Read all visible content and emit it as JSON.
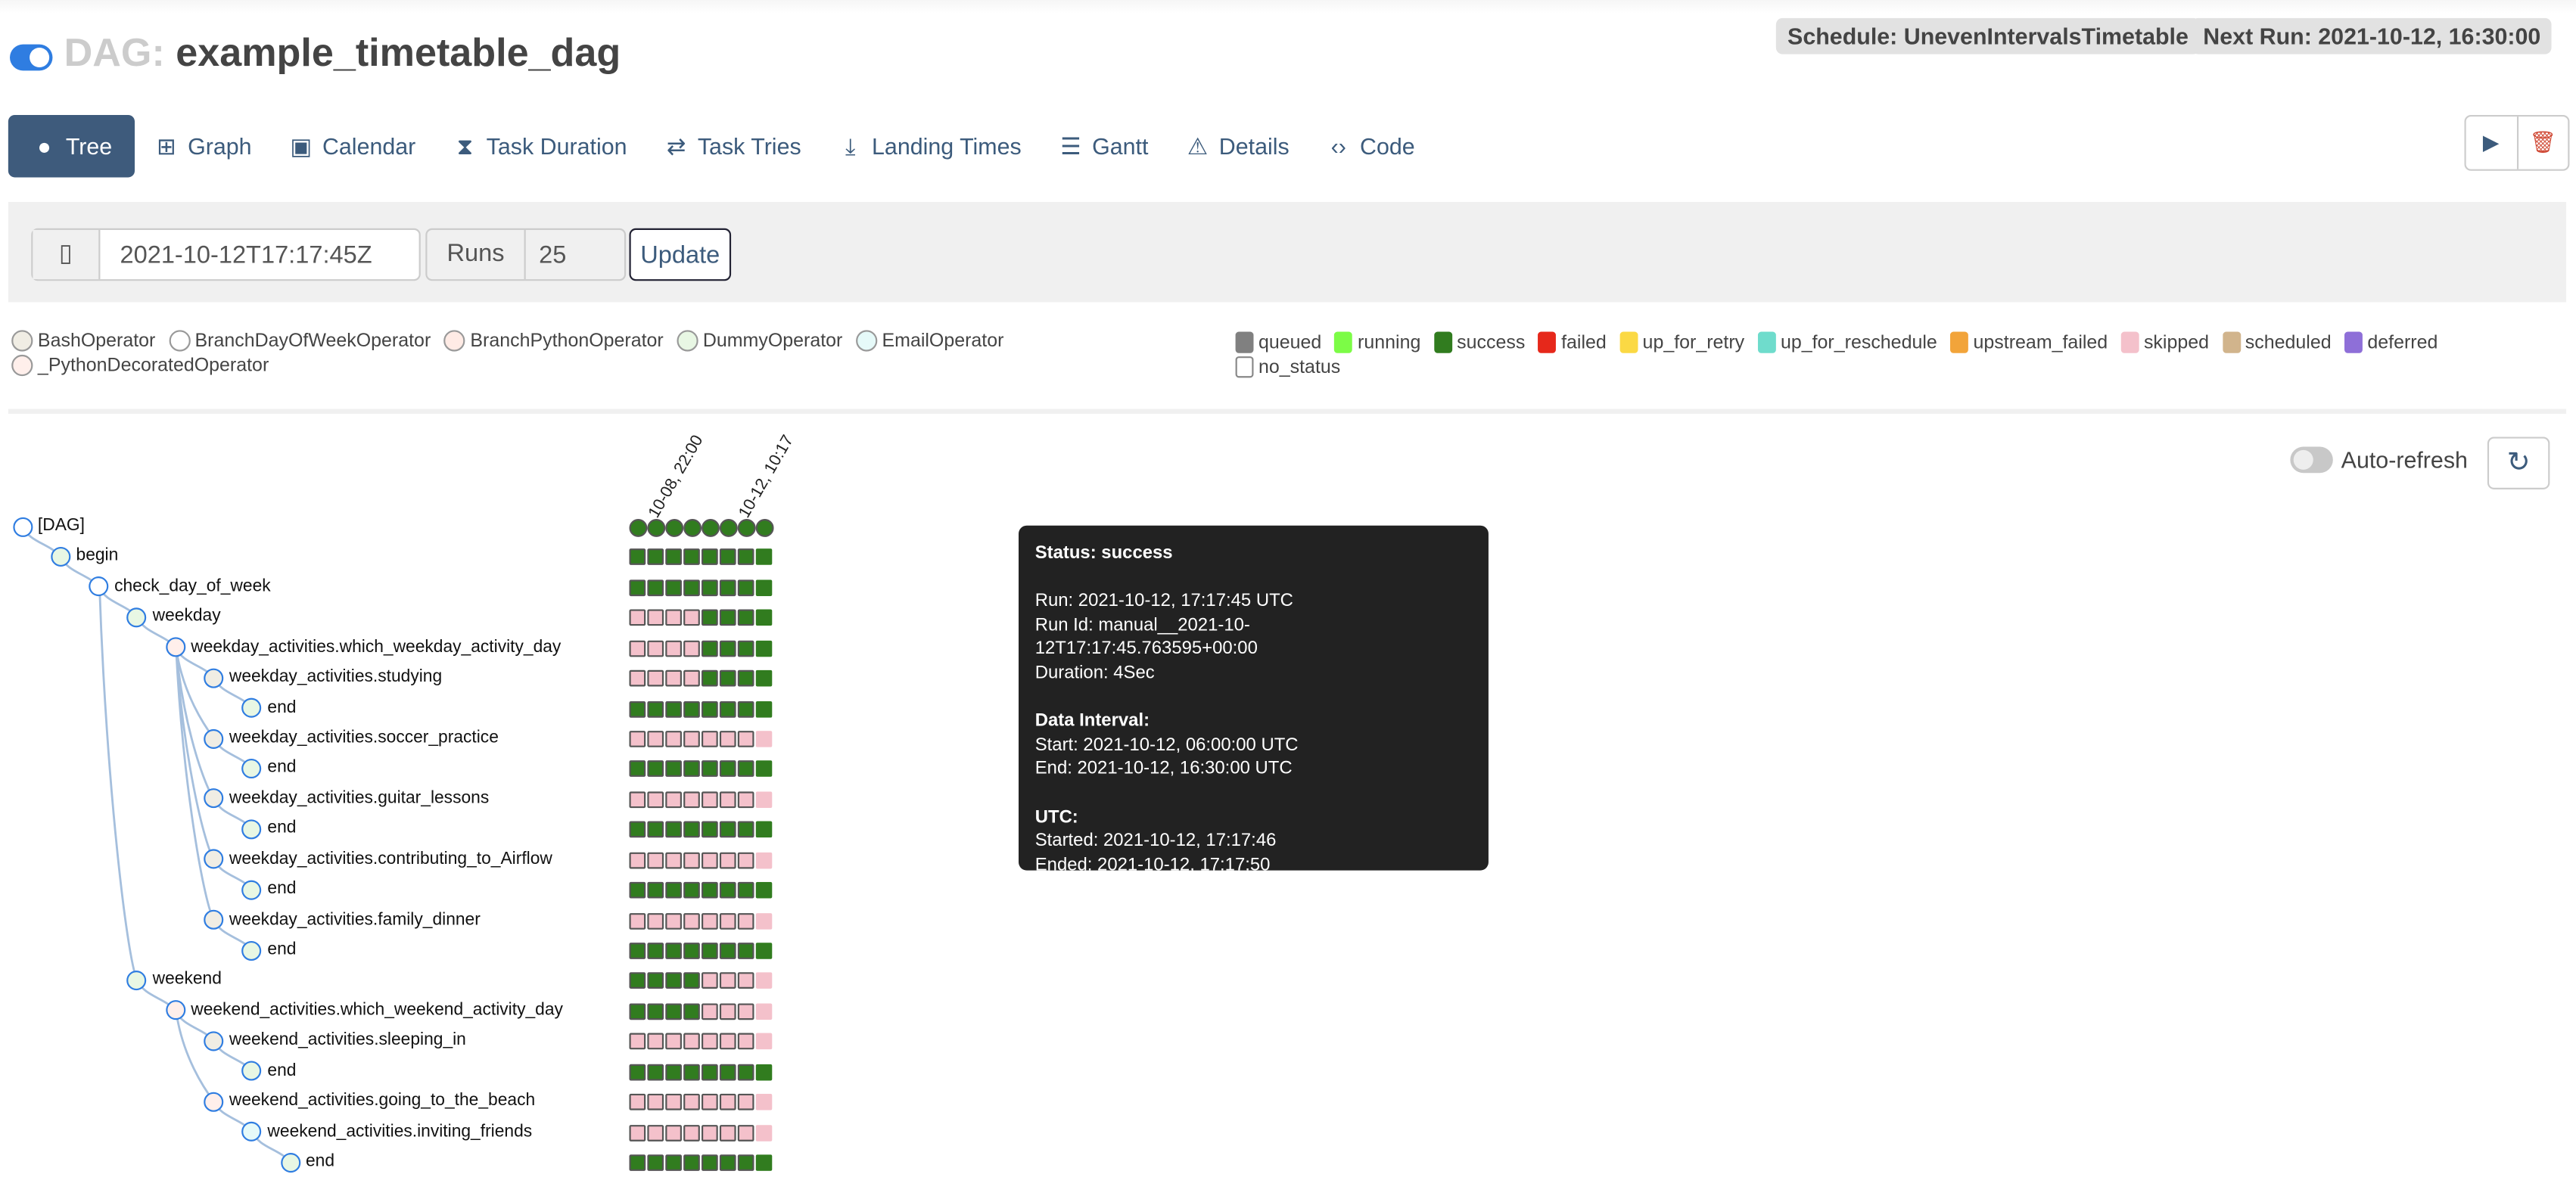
{
  "header": {
    "title_prefix": "DAG:",
    "dag_id": "example_timetable_dag",
    "schedule": "Schedule: UnevenIntervalsTimetable",
    "next_run": "Next Run: 2021-10-12, 16:30:00"
  },
  "tabs": [
    {
      "label": "Tree",
      "icon": "tree-icon",
      "active": true
    },
    {
      "label": "Graph",
      "icon": "graph-icon"
    },
    {
      "label": "Calendar",
      "icon": "calendar-icon"
    },
    {
      "label": "Task Duration",
      "icon": "hourglass-icon"
    },
    {
      "label": "Task Tries",
      "icon": "retweet-icon"
    },
    {
      "label": "Landing Times",
      "icon": "plane-landing-icon"
    },
    {
      "label": "Gantt",
      "icon": "gantt-icon"
    },
    {
      "label": "Details",
      "icon": "triangle-icon"
    },
    {
      "label": "Code",
      "icon": "code-icon"
    }
  ],
  "controls": {
    "base_date": "2021-10-12T17:17:45Z",
    "runs_label": "Runs",
    "runs_value": "25",
    "update_label": "Update"
  },
  "operators": [
    {
      "name": "BashOperator",
      "color": "#f0ede4"
    },
    {
      "name": "BranchDayOfWeekOperator",
      "color": "#ffffff"
    },
    {
      "name": "BranchPythonOperator",
      "color": "#ffebe5"
    },
    {
      "name": "DummyOperator",
      "color": "#e8f7e4"
    },
    {
      "name": "EmailOperator",
      "color": "#e6faf9"
    },
    {
      "name": "_PythonDecoratedOperator",
      "color": "#ffefeb"
    }
  ],
  "states": [
    {
      "name": "queued",
      "color": "#808080"
    },
    {
      "name": "running",
      "color": "#7cfc46"
    },
    {
      "name": "success",
      "color": "#317c1f"
    },
    {
      "name": "failed",
      "color": "#e6281b"
    },
    {
      "name": "up_for_retry",
      "color": "#fbd944"
    },
    {
      "name": "up_for_reschedule",
      "color": "#6fdccc"
    },
    {
      "name": "upstream_failed",
      "color": "#f2a43a"
    },
    {
      "name": "skipped",
      "color": "#f4c1cb"
    },
    {
      "name": "scheduled",
      "color": "#d1b48c"
    },
    {
      "name": "deferred",
      "color": "#8e6fd8"
    },
    {
      "name": "no_status",
      "color": "#ffffff"
    }
  ],
  "auto_refresh": {
    "label": "Auto-refresh",
    "enabled": false
  },
  "run_columns": [
    "10-08, 22:00",
    "10-12, 10:17"
  ],
  "tree": [
    {
      "label": "[DAG]",
      "depth": 0,
      "op": "",
      "states": "ssssssss"
    },
    {
      "label": "begin",
      "depth": 1,
      "op": "DummyOperator",
      "states": "ssssssss"
    },
    {
      "label": "check_day_of_week",
      "depth": 2,
      "op": "BranchDayOfWeekOperator",
      "states": "ssssssss"
    },
    {
      "label": "weekday",
      "depth": 3,
      "op": "DummyOperator",
      "states": "kkkkssss"
    },
    {
      "label": "weekday_activities.which_weekday_activity_day",
      "depth": 4,
      "op": "_PythonDecoratedOperator",
      "states": "kkkkssss"
    },
    {
      "label": "weekday_activities.studying",
      "depth": 5,
      "op": "BashOperator",
      "states": "kkkkssss"
    },
    {
      "label": "end",
      "depth": 6,
      "op": "DummyOperator",
      "states": "ssssssss"
    },
    {
      "label": "weekday_activities.soccer_practice",
      "depth": 5,
      "op": "BashOperator",
      "states": "kkkkkkkk"
    },
    {
      "label": "end",
      "depth": 6,
      "op": "DummyOperator",
      "states": "ssssssss"
    },
    {
      "label": "weekday_activities.guitar_lessons",
      "depth": 5,
      "op": "BashOperator",
      "states": "kkkkkkkk"
    },
    {
      "label": "end",
      "depth": 6,
      "op": "DummyOperator",
      "states": "ssssssss"
    },
    {
      "label": "weekday_activities.contributing_to_Airflow",
      "depth": 5,
      "op": "BashOperator",
      "states": "kkkkkkkk"
    },
    {
      "label": "end",
      "depth": 6,
      "op": "DummyOperator",
      "states": "ssssssss"
    },
    {
      "label": "weekday_activities.family_dinner",
      "depth": 5,
      "op": "BashOperator",
      "states": "kkkkkkkk"
    },
    {
      "label": "end",
      "depth": 6,
      "op": "DummyOperator",
      "states": "ssssssss"
    },
    {
      "label": "weekend",
      "depth": 3,
      "op": "DummyOperator",
      "states": "sssskkkk"
    },
    {
      "label": "weekend_activities.which_weekend_activity_day",
      "depth": 4,
      "op": "_PythonDecoratedOperator",
      "states": "sssskkkk"
    },
    {
      "label": "weekend_activities.sleeping_in",
      "depth": 5,
      "op": "BashOperator",
      "states": "kkkkkkkk"
    },
    {
      "label": "end",
      "depth": 6,
      "op": "DummyOperator",
      "states": "ssssssss"
    },
    {
      "label": "weekend_activities.going_to_the_beach",
      "depth": 5,
      "op": "_PythonDecoratedOperator",
      "states": "kkkkkkkk"
    },
    {
      "label": "weekend_activities.inviting_friends",
      "depth": 6,
      "op": "EmailOperator",
      "states": "kkkkkkkk"
    },
    {
      "label": "end",
      "depth": 7,
      "op": "DummyOperator",
      "states": "ssssssss"
    }
  ],
  "tooltip": {
    "status": "Status: success",
    "run": "Run: 2021-10-12, 17:17:45 UTC",
    "run_id": "Run Id: manual__2021-10-12T17:17:45.763595+00:00",
    "duration": "Duration: 4Sec",
    "interval_title": "Data Interval:",
    "start": "Start: 2021-10-12, 06:00:00 UTC",
    "end": "End: 2021-10-12, 16:30:00 UTC",
    "utc_title": "UTC:",
    "started": "Started: 2021-10-12, 17:17:46",
    "ended": "Ended: 2021-10-12, 17:17:50"
  }
}
